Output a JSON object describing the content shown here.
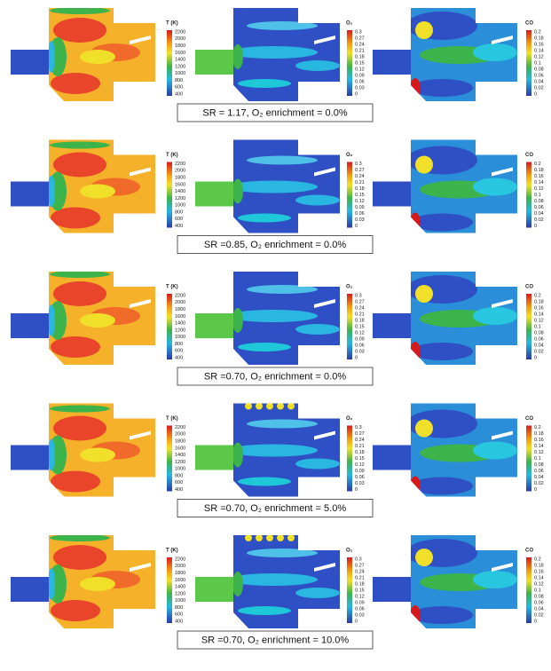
{
  "figure": {
    "legends": [
      {
        "title": "T (K)",
        "ticks": [
          2200,
          2000,
          1800,
          1600,
          1400,
          1200,
          1000,
          800,
          600,
          400
        ]
      },
      {
        "title": "O₂",
        "ticks": [
          0.3,
          0.27,
          0.24,
          0.21,
          0.18,
          0.15,
          0.12,
          0.09,
          0.06,
          0.03,
          0
        ]
      },
      {
        "title": "CO",
        "ticks": [
          0.2,
          0.18,
          0.16,
          0.14,
          0.12,
          0.1,
          0.08,
          0.06,
          0.04,
          0.02,
          0
        ]
      }
    ],
    "rows": [
      {
        "caption": "SR = 1.17, O₂ enrichment = 0.0%"
      },
      {
        "caption": "SR =0.85, O₂ enrichment = 0.0%"
      },
      {
        "caption": "SR =0.70, O₂ enrichment = 0.0%"
      },
      {
        "caption": "SR =0.70, O₂ enrichment = 5.0%"
      },
      {
        "caption": "SR =0.70, O₂ enrichment = 10.0%"
      }
    ]
  }
}
